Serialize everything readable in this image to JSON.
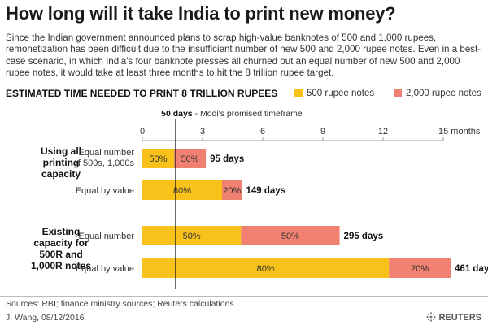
{
  "header": {
    "title": "How long will it take India to print new money?",
    "subtitle": "Since the Indian government announced plans to scrap high-value banknotes of 500 and 1,000 rupees, remonetization has been difficult due to the insufficient number of new 500 and 2,000 rupee notes. Even in a best-case scenario, in which India's four banknote presses all churned out an equal number of new 500 and 2,000 rupee notes, it would take at least three months to hit the 8 trillion rupee target."
  },
  "section_heading": "ESTIMATED TIME NEEDED TO PRINT 8 TRILLION RUPEES",
  "colors": {
    "r500": "#f9c21a",
    "r2000": "#f08070",
    "axis": "#999999",
    "marker": "#111111"
  },
  "chart_data": {
    "type": "bar",
    "orientation": "horizontal",
    "stacked": true,
    "x_unit": "months",
    "xlim": [
      0,
      15
    ],
    "x_ticks": [
      0,
      3,
      6,
      9,
      12,
      15
    ],
    "x_tick_labels": [
      "0",
      "3",
      "6",
      "9",
      "12",
      "15 months"
    ],
    "grid": false,
    "legend_placement": "top-right",
    "legend": [
      {
        "label": "500 rupee notes",
        "color_key": "r500"
      },
      {
        "label": "2,000 rupee notes",
        "color_key": "r2000"
      }
    ],
    "reference_line": {
      "x": 1.6667,
      "label_bold": "50 days",
      "label_rest": " - Modi's promised timeframe"
    },
    "groups": [
      {
        "label": [
          "Using all",
          "printing",
          "capacity"
        ],
        "rows": [
          {
            "label": [
              "Equal number",
              "of 500s, 1,000s"
            ],
            "segments": [
              {
                "series": "500 rupee notes",
                "months": 1.5833,
                "label": "50%"
              },
              {
                "series": "2,000 rupee notes",
                "months": 1.5833,
                "label": "50%"
              }
            ],
            "total_label": "95 days"
          },
          {
            "label": [
              "Equal by value"
            ],
            "segments": [
              {
                "series": "500 rupee notes",
                "months": 3.9733,
                "label": "80%"
              },
              {
                "series": "2,000 rupee notes",
                "months": 0.9933,
                "label": "20%"
              }
            ],
            "total_label": "149 days"
          }
        ]
      },
      {
        "label": [
          "Existing",
          "capacity for",
          "500R and",
          "1,000R notes"
        ],
        "rows": [
          {
            "label": [
              "Equal number"
            ],
            "segments": [
              {
                "series": "500 rupee notes",
                "months": 4.9167,
                "label": "50%"
              },
              {
                "series": "2,000 rupee notes",
                "months": 4.9167,
                "label": "50%"
              }
            ],
            "total_label": "295 days"
          },
          {
            "label": [
              "Equal by value"
            ],
            "segments": [
              {
                "series": "500 rupee notes",
                "months": 12.2933,
                "label": "80%"
              },
              {
                "series": "2,000 rupee notes",
                "months": 3.0733,
                "label": "20%"
              }
            ],
            "total_label": "461 days"
          }
        ]
      }
    ]
  },
  "footer": {
    "sources": "Sources: RBI; finance ministry sources; Reuters calculations",
    "byline": "J. Wang, 08/12/2016",
    "logo_text": "REUTERS",
    "logo_icon": "reuters-dots-icon"
  }
}
